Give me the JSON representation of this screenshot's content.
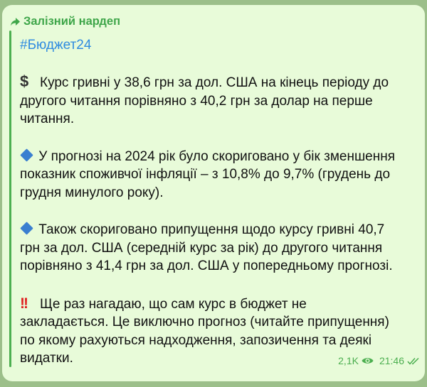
{
  "message": {
    "forwarded_from": "Залізний нардеп",
    "hashtag": "#Бюджет24",
    "paragraphs": [
      {
        "icon": "dollar-icon",
        "lines": [
          "Курс гривні у 38,6 грн за дол. США на кінець періоду до",
          "другого читання порівняно з 40,2 грн за долар на перше",
          "читання."
        ]
      },
      {
        "icon": "blue-diamond-icon",
        "lines": [
          "У прогнозі на 2024 рік було скориговано у бік зменшення",
          "показник споживчої інфляції – з 10,8% до 9,7% (грудень до",
          "грудня минулого року)."
        ]
      },
      {
        "icon": "blue-diamond-icon",
        "lines": [
          "Також скориговано припущення щодо курсу гривні 40,7",
          "грн за дол. США (середній курс за рік) до другого читання",
          "порівняно з 41,4 грн за дол. США у попередньому прогнозі."
        ]
      },
      {
        "icon": "double-exclamation-icon",
        "lines": [
          "Ще раз нагадаю, що сам курс в бюджет не",
          "закладається. Це виключно прогноз (читайте припущення)",
          "по якому рахуються надходження, запозичення та деякі",
          "видатки."
        ]
      }
    ],
    "views": "2,1K",
    "time": "21:46",
    "status": "read"
  },
  "colors": {
    "bubble": "#e8fbd9",
    "accent": "#4caf50",
    "link": "#2f8be0"
  }
}
